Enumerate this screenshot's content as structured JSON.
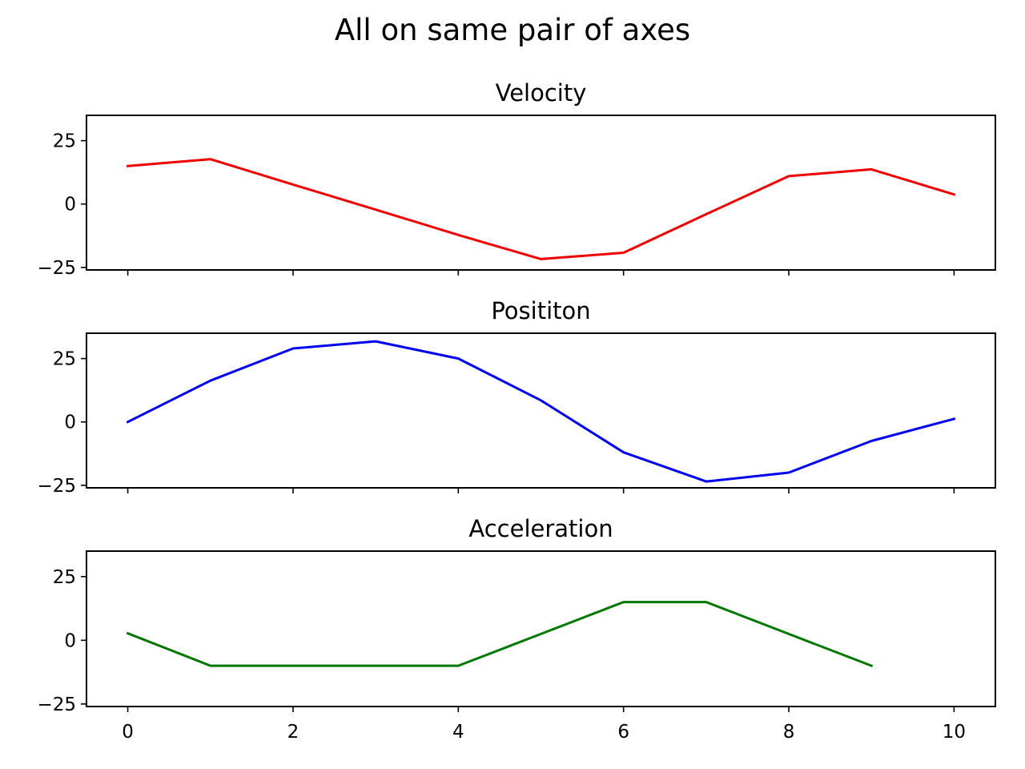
{
  "chart_data": {
    "type": "line",
    "title": "All on same pair of axes",
    "sharex": true,
    "xlim": [
      -0.5,
      10.5
    ],
    "ylim": [
      -26,
      35
    ],
    "x_ticks": [
      0,
      2,
      4,
      6,
      8,
      10
    ],
    "y_ticks": [
      -25,
      0,
      25
    ],
    "grid": false,
    "subplots": [
      {
        "title": "Velocity",
        "color": "#ee0000",
        "series": [
          {
            "x": [
              0,
              1,
              2,
              3,
              4,
              5,
              6,
              7,
              8,
              9,
              10
            ],
            "y": [
              15,
              17.7,
              7.7,
              -2.2,
              -12.2,
              -21.7,
              -19.2,
              -4,
              11,
              13.7,
              3.8
            ]
          }
        ]
      },
      {
        "title": "Posititon",
        "color": "#0000ee",
        "series": [
          {
            "x": [
              0,
              1,
              2,
              3,
              4,
              5,
              6,
              7,
              8,
              9,
              10
            ],
            "y": [
              0,
              16.3,
              29,
              31.8,
              25,
              8.5,
              -12,
              -23.5,
              -20,
              -7.5,
              1.2
            ]
          }
        ]
      },
      {
        "title": "Acceleration",
        "color": "#007700",
        "series": [
          {
            "x": [
              0,
              1,
              2,
              3,
              4,
              5,
              6,
              7,
              8,
              9
            ],
            "y": [
              2.7,
              -10,
              -10,
              -10,
              -10,
              2.5,
              15,
              15,
              2.5,
              -10
            ]
          }
        ]
      }
    ]
  }
}
